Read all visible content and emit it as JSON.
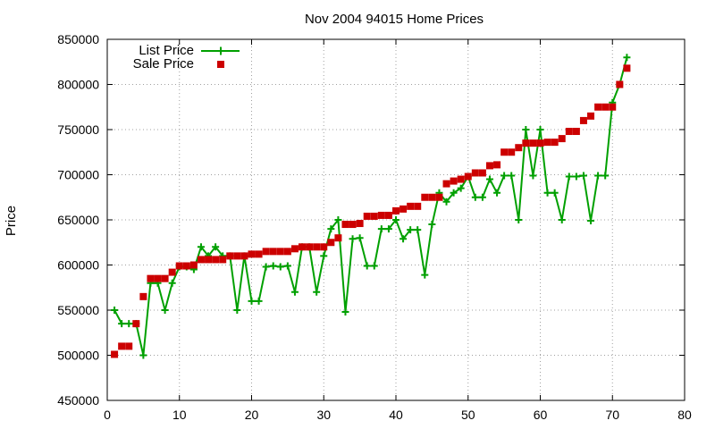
{
  "chart_data": {
    "type": "line",
    "title": "Nov 2004 94015 Home Prices",
    "xlabel": "",
    "ylabel": "Price",
    "xlim": [
      0,
      80
    ],
    "ylim": [
      450000,
      850000
    ],
    "x_ticks": [
      0,
      10,
      20,
      30,
      40,
      50,
      60,
      70,
      80
    ],
    "y_ticks": [
      450000,
      500000,
      550000,
      600000,
      650000,
      700000,
      750000,
      800000,
      850000
    ],
    "grid": true,
    "legend_position": "top-left",
    "colors": {
      "list": "#00a000",
      "sale": "#cc0000"
    },
    "series": [
      {
        "name": "List Price",
        "marker": "plus",
        "x": [
          1,
          2,
          3,
          4,
          5,
          6,
          7,
          8,
          9,
          10,
          11,
          12,
          13,
          14,
          15,
          16,
          17,
          18,
          19,
          20,
          21,
          22,
          23,
          24,
          25,
          26,
          27,
          28,
          29,
          30,
          31,
          32,
          33,
          34,
          35,
          36,
          37,
          38,
          39,
          40,
          41,
          42,
          43,
          44,
          45,
          46,
          47,
          48,
          49,
          50,
          51,
          52,
          53,
          54,
          55,
          56,
          57,
          58,
          59,
          60,
          61,
          62,
          63,
          64,
          65,
          66,
          67,
          68,
          69,
          70,
          71,
          72
        ],
        "values": [
          550000,
          535000,
          535000,
          535000,
          500000,
          580000,
          580000,
          550000,
          580000,
          598000,
          598000,
          595000,
          620000,
          610000,
          620000,
          610000,
          610000,
          550000,
          610000,
          560000,
          560000,
          598000,
          599000,
          598000,
          599000,
          570000,
          620000,
          620000,
          570000,
          610000,
          640000,
          650000,
          548000,
          629000,
          630000,
          599000,
          599000,
          640000,
          640000,
          650000,
          629000,
          639000,
          639000,
          589000,
          645000,
          680000,
          670000,
          680000,
          685000,
          698000,
          675000,
          675000,
          695000,
          680000,
          699000,
          699000,
          650000,
          750000,
          699000,
          750000,
          680000,
          680000,
          650000,
          698000,
          698000,
          699000,
          649000,
          699000,
          699000,
          780000,
          800000,
          830000
        ]
      },
      {
        "name": "Sale Price",
        "marker": "square",
        "x": [
          1,
          2,
          3,
          4,
          5,
          6,
          7,
          8,
          9,
          10,
          11,
          12,
          13,
          14,
          15,
          16,
          17,
          18,
          19,
          20,
          21,
          22,
          23,
          24,
          25,
          26,
          27,
          28,
          29,
          30,
          31,
          32,
          33,
          34,
          35,
          36,
          37,
          38,
          39,
          40,
          41,
          42,
          43,
          44,
          45,
          46,
          47,
          48,
          49,
          50,
          51,
          52,
          53,
          54,
          55,
          56,
          57,
          58,
          59,
          60,
          61,
          62,
          63,
          64,
          65,
          66,
          67,
          68,
          69,
          70,
          71,
          72
        ],
        "values": [
          501000,
          510000,
          510000,
          535000,
          565000,
          585000,
          585000,
          585000,
          592000,
          599000,
          599000,
          600000,
          606000,
          606000,
          606000,
          606000,
          610000,
          610000,
          610000,
          612000,
          612000,
          615000,
          615000,
          615000,
          615000,
          618000,
          620000,
          620000,
          620000,
          620000,
          625000,
          630000,
          645000,
          645000,
          646000,
          654000,
          654000,
          655000,
          655000,
          660000,
          662000,
          665000,
          665000,
          675000,
          675000,
          675000,
          690000,
          693000,
          695000,
          698000,
          702000,
          702000,
          710000,
          711000,
          725000,
          725000,
          730000,
          735000,
          735000,
          735000,
          736000,
          736000,
          740000,
          748000,
          748000,
          760000,
          765000,
          775000,
          775000,
          775000,
          800000,
          818000
        ]
      }
    ]
  }
}
